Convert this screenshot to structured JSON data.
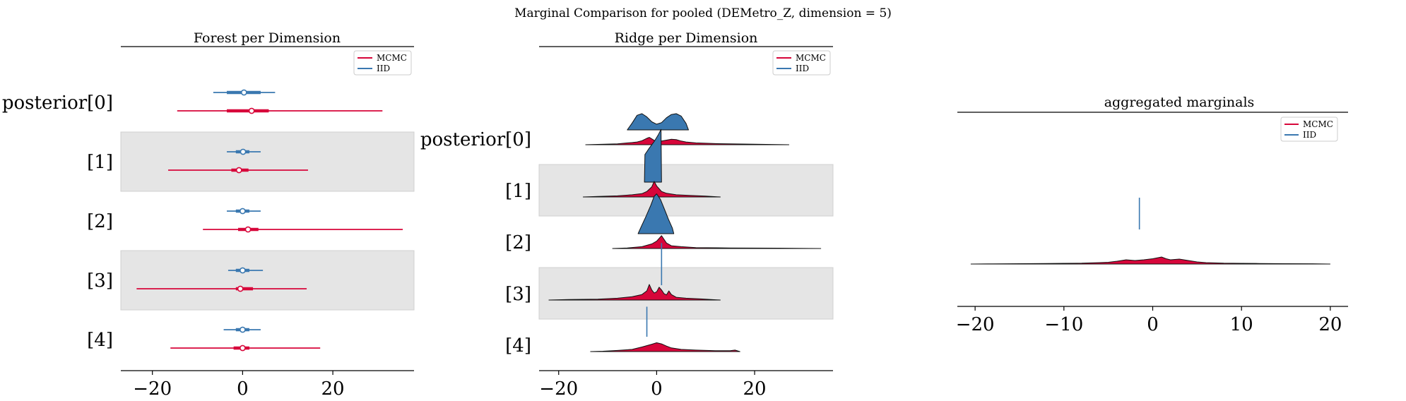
{
  "figure": {
    "suptitle": "Marginal Comparison for pooled (DEMetro_Z, dimension = 5)"
  },
  "colors": {
    "mcmc": "#d7063a",
    "iid": "#3a78b0",
    "band": "#e5e5e5",
    "outline": "#111111"
  },
  "chart_data": [
    {
      "type": "forest",
      "title": "Forest per Dimension",
      "categories": [
        "posterior[0]",
        "[1]",
        "[2]",
        "[3]",
        "[4]"
      ],
      "xlim": [
        -27,
        38
      ],
      "xticks": [
        -20,
        0,
        20
      ],
      "xtick_labels": [
        "−20",
        "0",
        "20"
      ],
      "legend": {
        "placement": "top-right",
        "entries": [
          "MCMC",
          "IID"
        ]
      },
      "series": [
        {
          "name": "IID",
          "color_key": "iid",
          "intervals": [
            {
              "lo": -6.5,
              "q1": -3.5,
              "med": 0.3,
              "q3": 4,
              "hi": 7.2
            },
            {
              "lo": -3.5,
              "q1": -1.5,
              "med": 0.1,
              "q3": 1.5,
              "hi": 4
            },
            {
              "lo": -3.5,
              "q1": -1.5,
              "med": 0,
              "q3": 1.5,
              "hi": 4
            },
            {
              "lo": -3.2,
              "q1": -1.5,
              "med": 0,
              "q3": 1.5,
              "hi": 4.5
            },
            {
              "lo": -4.2,
              "q1": -1.5,
              "med": 0,
              "q3": 1.5,
              "hi": 4
            }
          ]
        },
        {
          "name": "MCMC",
          "color_key": "mcmc",
          "intervals": [
            {
              "lo": -14.5,
              "q1": -3.5,
              "med": 2,
              "q3": 5.8,
              "hi": 31
            },
            {
              "lo": -16.5,
              "q1": -2.5,
              "med": -0.8,
              "q3": 1.3,
              "hi": 14.5
            },
            {
              "lo": -8.8,
              "q1": -1,
              "med": 1.2,
              "q3": 3.5,
              "hi": 35.5
            },
            {
              "lo": -23.5,
              "q1": -1.5,
              "med": -0.5,
              "q3": 2.3,
              "hi": 14.2
            },
            {
              "lo": -16,
              "q1": -2,
              "med": 0,
              "q3": 1.5,
              "hi": 17.2
            }
          ]
        }
      ]
    },
    {
      "type": "ridge",
      "title": "Ridge per Dimension",
      "categories": [
        "posterior[0]",
        "[1]",
        "[2]",
        "[3]",
        "[4]"
      ],
      "xlim": [
        -24,
        36
      ],
      "xticks": [
        -20,
        0,
        20
      ],
      "xtick_labels": [
        "−20",
        "0",
        "20"
      ],
      "legend": {
        "placement": "top-right",
        "entries": [
          "MCMC",
          "IID"
        ]
      },
      "series": [
        {
          "name": "IID",
          "color_key": "iid",
          "densities": [
            [
              [
                -6,
                0
              ],
              [
                -5,
                0.42
              ],
              [
                -4,
                0.9
              ],
              [
                -3,
                1.0
              ],
              [
                -2,
                0.8
              ],
              [
                -1,
                0.5
              ],
              [
                0,
                0.35
              ],
              [
                1,
                0.45
              ],
              [
                2,
                0.75
              ],
              [
                3,
                0.95
              ],
              [
                4,
                1.0
              ],
              [
                5,
                0.85
              ],
              [
                6,
                0.4
              ],
              [
                6.5,
                0
              ]
            ],
            [
              [
                -2.5,
                0
              ],
              [
                -2.4,
                1.7
              ],
              [
                -1.5,
                2.1
              ],
              [
                -0.5,
                2.5
              ],
              [
                0.3,
                2.9
              ],
              [
                0.9,
                3.25
              ],
              [
                1,
                0
              ]
            ],
            [
              [
                -3.8,
                0
              ],
              [
                -3.2,
                0.4
              ],
              [
                -2.2,
                1.05
              ],
              [
                -1.2,
                1.75
              ],
              [
                -0.5,
                2.3
              ],
              [
                0,
                2.45
              ],
              [
                0.8,
                2.1
              ],
              [
                1.6,
                1.5
              ],
              [
                2.4,
                0.9
              ],
              [
                3.2,
                0.35
              ],
              [
                3.5,
                0
              ]
            ],
            [
              [
                1,
                0
              ],
              [
                1,
                2.6
              ],
              [
                1,
                0
              ]
            ],
            [
              [
                -2,
                0
              ],
              [
                -2,
                1.85
              ],
              [
                -2,
                0
              ]
            ]
          ]
        },
        {
          "name": "MCMC",
          "color_key": "mcmc",
          "densities": [
            [
              [
                -14.5,
                0
              ],
              [
                -12,
                0.02
              ],
              [
                -8,
                0.05
              ],
              [
                -5,
                0.12
              ],
              [
                -4,
                0.15
              ],
              [
                -3,
                0.22
              ],
              [
                -2,
                0.35
              ],
              [
                -1.5,
                0.4
              ],
              [
                -1,
                0.32
              ],
              [
                0,
                0.15
              ],
              [
                1,
                0.2
              ],
              [
                2,
                0.25
              ],
              [
                3,
                0.3
              ],
              [
                4,
                0.28
              ],
              [
                5,
                0.2
              ],
              [
                6,
                0.15
              ],
              [
                8,
                0.1
              ],
              [
                12,
                0.06
              ],
              [
                20,
                0.03
              ],
              [
                27,
                0
              ]
            ],
            [
              [
                -15,
                0
              ],
              [
                -12,
                0.03
              ],
              [
                -8,
                0.06
              ],
              [
                -5,
                0.12
              ],
              [
                -3,
                0.18
              ],
              [
                -2,
                0.3
              ],
              [
                -1,
                0.55
              ],
              [
                -0.5,
                0.85
              ],
              [
                0,
                0.6
              ],
              [
                0.5,
                0.45
              ],
              [
                1,
                0.3
              ],
              [
                2,
                0.2
              ],
              [
                4,
                0.12
              ],
              [
                7,
                0.08
              ],
              [
                10,
                0.05
              ],
              [
                13,
                0
              ]
            ],
            [
              [
                -9,
                0
              ],
              [
                -6,
                0.03
              ],
              [
                -3,
                0.1
              ],
              [
                -1,
                0.25
              ],
              [
                0,
                0.4
              ],
              [
                0.5,
                0.55
              ],
              [
                1,
                0.7
              ],
              [
                1.5,
                0.5
              ],
              [
                2,
                0.3
              ],
              [
                3,
                0.15
              ],
              [
                5,
                0.1
              ],
              [
                8,
                0.05
              ],
              [
                15,
                0.03
              ],
              [
                25,
                0.02
              ],
              [
                33.5,
                0
              ]
            ],
            [
              [
                -22,
                0
              ],
              [
                -18,
                0.03
              ],
              [
                -12,
                0.05
              ],
              [
                -8,
                0.1
              ],
              [
                -5,
                0.18
              ],
              [
                -3,
                0.3
              ],
              [
                -2,
                0.5
              ],
              [
                -1.5,
                0.85
              ],
              [
                -1,
                0.55
              ],
              [
                -0.5,
                0.38
              ],
              [
                0,
                0.45
              ],
              [
                0.5,
                0.7
              ],
              [
                1,
                0.55
              ],
              [
                1.5,
                0.35
              ],
              [
                2,
                0.28
              ],
              [
                2.5,
                0.5
              ],
              [
                3,
                0.3
              ],
              [
                4,
                0.15
              ],
              [
                6,
                0.1
              ],
              [
                9,
                0.06
              ],
              [
                13,
                0
              ]
            ],
            [
              [
                -13.5,
                0
              ],
              [
                -11,
                0.02
              ],
              [
                -8,
                0.06
              ],
              [
                -5,
                0.12
              ],
              [
                -3,
                0.25
              ],
              [
                -1,
                0.4
              ],
              [
                0,
                0.48
              ],
              [
                1,
                0.42
              ],
              [
                2,
                0.3
              ],
              [
                3,
                0.2
              ],
              [
                5,
                0.12
              ],
              [
                8,
                0.08
              ],
              [
                12,
                0.05
              ],
              [
                15,
                0.05
              ],
              [
                16,
                0.08
              ],
              [
                17,
                0
              ]
            ]
          ]
        }
      ]
    },
    {
      "type": "ridge",
      "title": "aggregated marginals",
      "xlim": [
        -22,
        22
      ],
      "xticks": [
        -20,
        -10,
        0,
        10,
        20
      ],
      "xtick_labels": [
        "−20",
        "−10",
        "0",
        "10",
        "20"
      ],
      "legend": {
        "placement": "top-right",
        "entries": [
          "MCMC",
          "IID"
        ]
      },
      "series": [
        {
          "name": "IID",
          "color_key": "iid",
          "spike_at": -1.5
        },
        {
          "name": "MCMC",
          "color_key": "mcmc",
          "density": [
            [
              -20.5,
              0
            ],
            [
              -18,
              0.03
            ],
            [
              -15,
              0.05
            ],
            [
              -12,
              0.08
            ],
            [
              -10,
              0.1
            ],
            [
              -8,
              0.12
            ],
            [
              -6,
              0.2
            ],
            [
              -5,
              0.25
            ],
            [
              -4,
              0.4
            ],
            [
              -3,
              0.6
            ],
            [
              -2,
              0.5
            ],
            [
              -1,
              0.6
            ],
            [
              0,
              0.75
            ],
            [
              1,
              1.0
            ],
            [
              1.5,
              0.75
            ],
            [
              2,
              0.6
            ],
            [
              3,
              0.7
            ],
            [
              4,
              0.5
            ],
            [
              5,
              0.3
            ],
            [
              6,
              0.2
            ],
            [
              8,
              0.12
            ],
            [
              10,
              0.1
            ],
            [
              12,
              0.08
            ],
            [
              15,
              0.05
            ],
            [
              18,
              0.04
            ],
            [
              20,
              0
            ]
          ]
        }
      ]
    }
  ]
}
